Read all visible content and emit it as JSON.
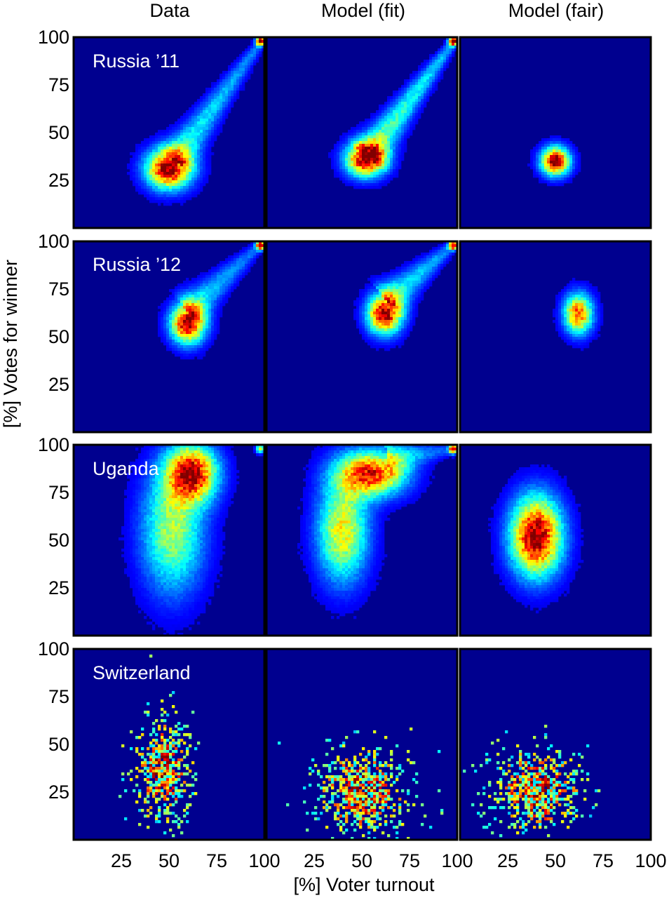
{
  "figure": {
    "column_titles": [
      "Data",
      "Model (fit)",
      "Model (fair)"
    ],
    "row_labels": [
      "Russia ’11",
      "Russia ’12",
      "Uganda",
      "Switzerland"
    ],
    "xlabel": "[%] Voter turnout",
    "ylabel": "[%] Votes for winner"
  },
  "colors": {
    "background": "#00008f",
    "colormap": [
      "#00008f",
      "#0000ff",
      "#0080ff",
      "#00ffff",
      "#80ff80",
      "#ffff00",
      "#ff8000",
      "#ff0000",
      "#800000"
    ]
  },
  "chart_data": {
    "type": "heatmap",
    "layout": "4 rows x 3 columns of 2D histograms",
    "x_axis": {
      "label": "[%] Voter turnout",
      "range": [
        0,
        100
      ],
      "ticks": [
        25,
        50,
        75,
        100
      ]
    },
    "y_axis": {
      "label": "[%] Votes for winner",
      "range": [
        0,
        100
      ],
      "ticks": [
        25,
        50,
        75,
        100
      ]
    },
    "colormap": "jet",
    "grid": false,
    "panels": [
      {
        "row": "Russia ’11",
        "column": "Data",
        "components": [
          {
            "kind": "blob",
            "turnout": 50,
            "votes": 31,
            "sd_turnout": 8,
            "sd_votes": 7,
            "weight": 1.0
          },
          {
            "kind": "streak",
            "from": [
              55,
              38
            ],
            "to": [
              100,
              100
            ],
            "weight": 0.35
          },
          {
            "kind": "point",
            "turnout": 98,
            "votes": 98,
            "weight": 1.0
          }
        ]
      },
      {
        "row": "Russia ’11",
        "column": "Model (fit)",
        "components": [
          {
            "kind": "blob",
            "turnout": 52,
            "votes": 36,
            "sd_turnout": 7,
            "sd_votes": 6,
            "weight": 1.0
          },
          {
            "kind": "streak",
            "from": [
              55,
              40
            ],
            "to": [
              100,
              100
            ],
            "weight": 0.45
          },
          {
            "kind": "point",
            "turnout": 98,
            "votes": 98,
            "weight": 1.0
          }
        ]
      },
      {
        "row": "Russia ’11",
        "column": "Model (fair)",
        "components": [
          {
            "kind": "blob",
            "turnout": 50,
            "votes": 35,
            "sd_turnout": 5,
            "sd_votes": 5,
            "weight": 1.0
          }
        ]
      },
      {
        "row": "Russia ’12",
        "column": "Data",
        "components": [
          {
            "kind": "blob",
            "turnout": 60,
            "votes": 57,
            "sd_turnout": 6,
            "sd_votes": 7,
            "weight": 1.0
          },
          {
            "kind": "streak",
            "from": [
              62,
              65
            ],
            "to": [
              100,
              100
            ],
            "weight": 0.3
          },
          {
            "kind": "point",
            "turnout": 98,
            "votes": 98,
            "weight": 1.0
          }
        ]
      },
      {
        "row": "Russia ’12",
        "column": "Model (fit)",
        "components": [
          {
            "kind": "blob",
            "turnout": 62,
            "votes": 62,
            "sd_turnout": 6,
            "sd_votes": 7,
            "weight": 1.0
          },
          {
            "kind": "streak",
            "from": [
              65,
              70
            ],
            "to": [
              100,
              100
            ],
            "weight": 0.35
          },
          {
            "kind": "point",
            "turnout": 98,
            "votes": 98,
            "weight": 1.0
          }
        ]
      },
      {
        "row": "Russia ’12",
        "column": "Model (fair)",
        "components": [
          {
            "kind": "blob",
            "turnout": 62,
            "votes": 62,
            "sd_turnout": 5,
            "sd_votes": 7,
            "weight": 0.8
          }
        ]
      },
      {
        "row": "Uganda",
        "column": "Data",
        "components": [
          {
            "kind": "blob",
            "turnout": 62,
            "votes": 85,
            "sd_turnout": 9,
            "sd_votes": 10,
            "weight": 0.9
          },
          {
            "kind": "blob",
            "turnout": 52,
            "votes": 55,
            "sd_turnout": 11,
            "sd_votes": 22,
            "weight": 0.5
          },
          {
            "kind": "point",
            "turnout": 98,
            "votes": 98,
            "weight": 0.6
          }
        ]
      },
      {
        "row": "Uganda",
        "column": "Model (fit)",
        "components": [
          {
            "kind": "blob",
            "turnout": 55,
            "votes": 85,
            "sd_turnout": 12,
            "sd_votes": 8,
            "weight": 0.85
          },
          {
            "kind": "blob",
            "turnout": 40,
            "votes": 55,
            "sd_turnout": 9,
            "sd_votes": 18,
            "weight": 0.6
          },
          {
            "kind": "streak",
            "from": [
              65,
              93
            ],
            "to": [
              100,
              98
            ],
            "weight": 0.25
          },
          {
            "kind": "point",
            "turnout": 98,
            "votes": 98,
            "weight": 1.0
          }
        ]
      },
      {
        "row": "Uganda",
        "column": "Model (fair)",
        "components": [
          {
            "kind": "blob",
            "turnout": 40,
            "votes": 52,
            "sd_turnout": 9,
            "sd_votes": 14,
            "weight": 1.0
          }
        ]
      },
      {
        "row": "Switzerland",
        "column": "Data",
        "components": [
          {
            "kind": "blob",
            "turnout": 47,
            "votes": 37,
            "sd_turnout": 8,
            "sd_votes": 15,
            "weight": 0.8
          }
        ]
      },
      {
        "row": "Switzerland",
        "column": "Model (fit)",
        "components": [
          {
            "kind": "blob",
            "turnout": 50,
            "votes": 25,
            "sd_turnout": 13,
            "sd_votes": 12,
            "weight": 0.8
          }
        ]
      },
      {
        "row": "Switzerland",
        "column": "Model (fair)",
        "components": [
          {
            "kind": "blob",
            "turnout": 40,
            "votes": 25,
            "sd_turnout": 13,
            "sd_votes": 12,
            "weight": 0.8
          }
        ]
      }
    ]
  }
}
